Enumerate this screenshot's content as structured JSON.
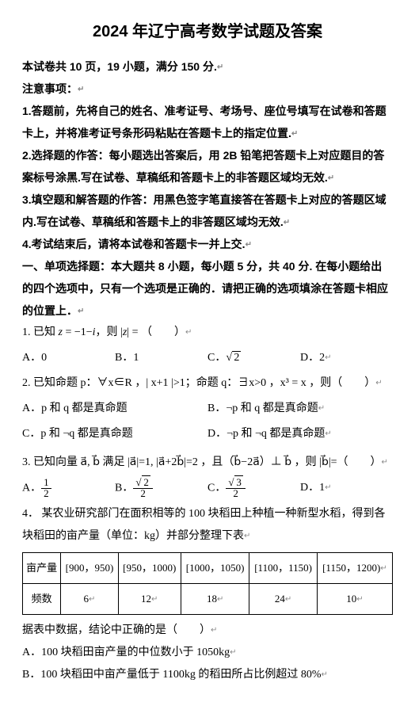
{
  "title": "2024 年辽宁高考数学试题及答案",
  "intro": "本试卷共 10 页，19 小题，满分 150 分.",
  "notes_h": "注意事项：",
  "notes": [
    "1.答题前，先将自己的姓名、准考证号、考场号、座位号填写在试卷和答题卡上，并将准考证号条形码粘贴在答题卡上的指定位置.",
    "2.选择题的作答：每小题选出答案后，用 2B 铅笔把答题卡上对应题目的答案标号涂黑.写在试卷、草稿纸和答题卡上的非答题区域均无效.",
    "3.填空题和解答题的作答：用黑色签字笔直接答在答题卡上对应的答题区域内.写在试卷、草稿纸和答题卡上的非答题区域均无效.",
    "4.考试结束后，请将本试卷和答题卡一并上交."
  ],
  "sec1": "一、单项选择题：本大题共  8  小题，每小题 5 分，共  40 分.  在每小题给出的四个选项中，只有一个选项是正确的．请把正确的选项填涂在答题卡相应的位置上．",
  "q1": {
    "stem_pre": "1.  已知 ",
    "z": "z",
    "eq": " = −1−",
    "i": "i",
    "mid": "，则 |",
    "z2": "z",
    "post": "| = （　　）",
    "opts": {
      "a": "A．0",
      "b": "B．1",
      "c_pre": "C．",
      "d": "D．2"
    }
  },
  "q2": {
    "stem": "2.  已知命题 p：∀x∈R ，| x+1 |>1；命题 q：∃x>0 ，x³ = x ，则（　　）",
    "opts": {
      "a": "A．p 和 q 都是真命题",
      "b": "B．¬p 和 q 都是真命题",
      "c": "C．p 和 ¬q 都是真命题",
      "d": "D．¬p 和 ¬q 都是真命题"
    }
  },
  "q3": {
    "stem": "3.  已知向量 a⃗, b⃗ 满足 |a⃗|=1, |a⃗+2b⃗|=2 ，且（b⃗−2a⃗）⊥ b⃗ ，则 |b⃗|=（　　）",
    "opts": {
      "a_pre": "A．",
      "a_num": "1",
      "a_den": "2",
      "b_pre": "B．",
      "b_rad": "2",
      "b_den": "2",
      "c_pre": "C．",
      "c_rad": "3",
      "c_den": "2",
      "d": "D．1"
    }
  },
  "q4": {
    "stem": "4． 某农业研究部门在面积相等的 100 块稻田上种植一种新型水稻，得到各块稻田的亩产量（单位：kg）并部分整理下表",
    "table": {
      "h1": "亩产量",
      "h2": "频数",
      "r": [
        "[900，950)",
        "[950，1000)",
        "[1000，1050)",
        "[1100，1150)",
        "[1150，1200)"
      ],
      "f": [
        "6",
        "12",
        "18",
        "24",
        "10"
      ]
    },
    "after": "据表中数据，结论中正确的是（　　）",
    "opts": {
      "a": "A．100 块稻田亩产量的中位数小于 1050kg",
      "b": "B．100 块稻田中亩产量低于 1100kg 的稻田所占比例超过 80%"
    }
  }
}
